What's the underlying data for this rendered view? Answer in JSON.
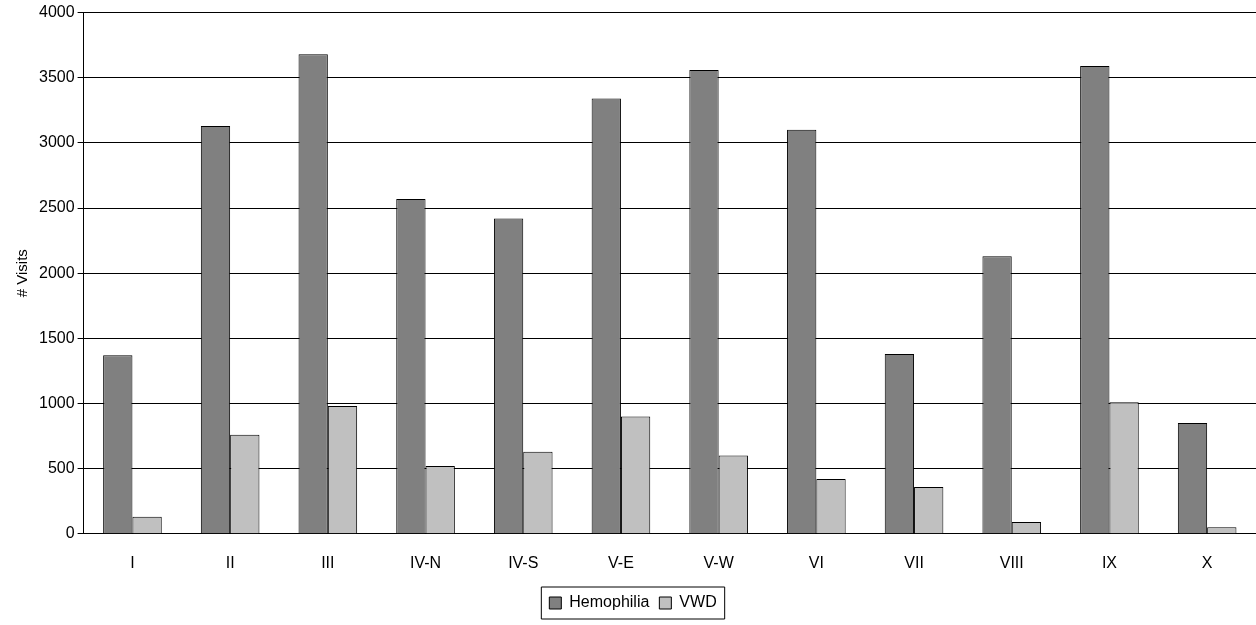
{
  "chart_data": {
    "type": "bar",
    "ylabel": "# Visits",
    "categories": [
      "I",
      "II",
      "III",
      "IV-N",
      "IV-S",
      "V-E",
      "V-W",
      "VI",
      "VII",
      "VIII",
      "IX",
      "X"
    ],
    "series": [
      {
        "name": "Hemophilia",
        "color": "#808080",
        "values": [
          1370,
          3130,
          3680,
          2570,
          2420,
          3340,
          3560,
          3100,
          1380,
          2130,
          3590,
          850
        ]
      },
      {
        "name": "VWD",
        "color": "#c0c0c0",
        "values": [
          130,
          760,
          980,
          520,
          630,
          900,
          600,
          420,
          360,
          90,
          1010,
          50
        ]
      }
    ],
    "ylim": [
      0,
      4000
    ],
    "yticks": [
      0,
      500,
      1000,
      1500,
      2000,
      2500,
      3000,
      3500,
      4000
    ],
    "grid": "y",
    "legend": "bottom"
  }
}
